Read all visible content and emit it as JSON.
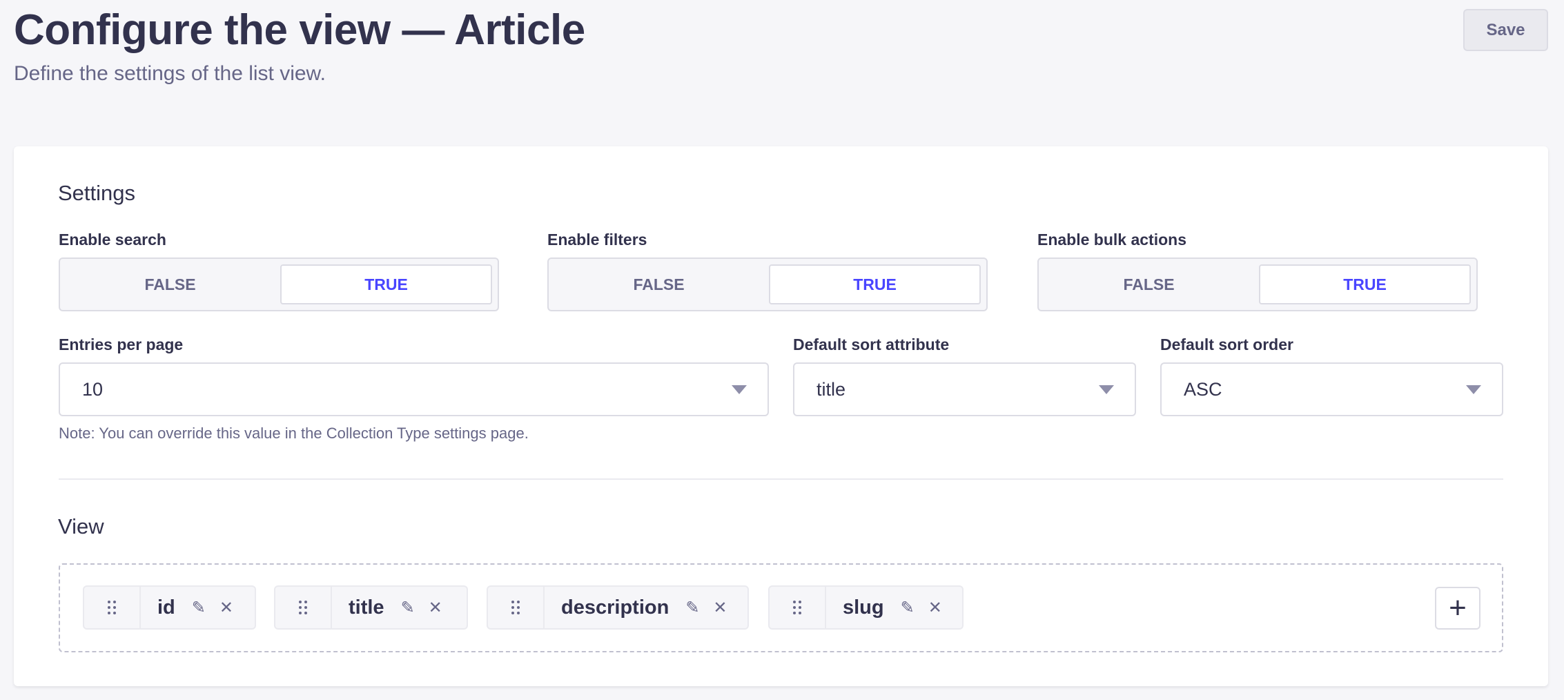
{
  "header": {
    "title": "Configure the view — Article",
    "subtitle": "Define the settings of the list view.",
    "save_label": "Save"
  },
  "settings": {
    "heading": "Settings",
    "toggles": [
      {
        "label": "Enable search",
        "false_label": "FALSE",
        "true_label": "TRUE",
        "value": true
      },
      {
        "label": "Enable filters",
        "false_label": "FALSE",
        "true_label": "TRUE",
        "value": true
      },
      {
        "label": "Enable bulk actions",
        "false_label": "FALSE",
        "true_label": "TRUE",
        "value": true
      }
    ],
    "selects": [
      {
        "label": "Entries per page",
        "value": "10"
      },
      {
        "label": "Default sort attribute",
        "value": "title"
      },
      {
        "label": "Default sort order",
        "value": "ASC"
      }
    ],
    "note": "Note: You can override this value in the Collection Type settings page."
  },
  "view": {
    "heading": "View",
    "fields": [
      "id",
      "title",
      "description",
      "slug"
    ],
    "add_icon": "plus-icon"
  },
  "colors": {
    "accent": "#4945ff",
    "text": "#32324d",
    "muted": "#666687",
    "background": "#f6f6f9"
  }
}
